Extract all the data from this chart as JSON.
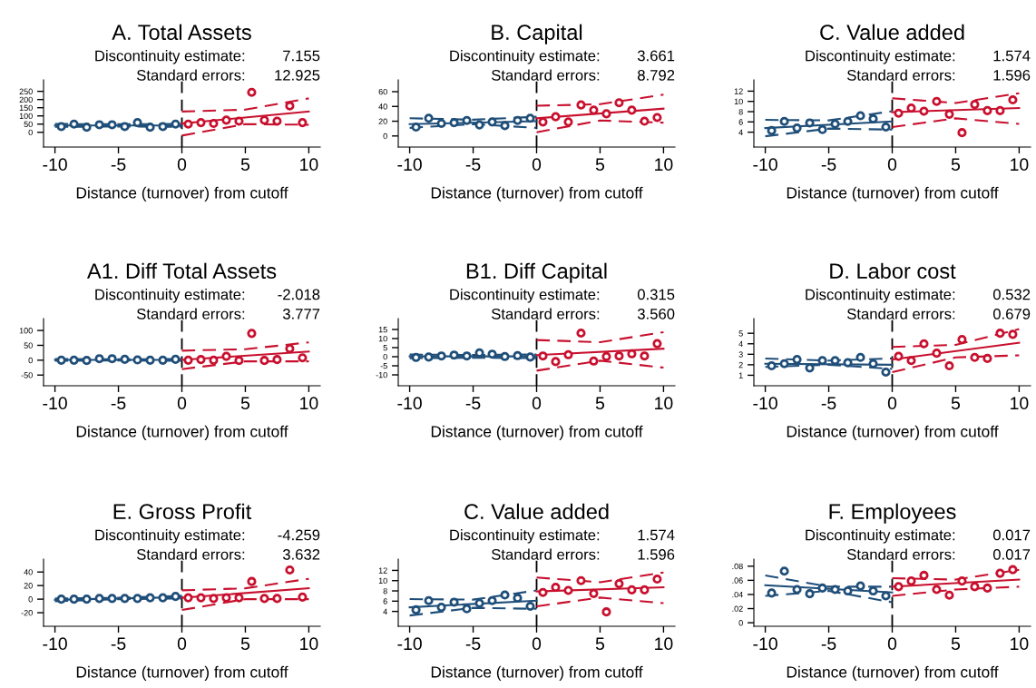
{
  "chart_data": [
    {
      "type": "scatter",
      "title": "A. Total Assets",
      "xlabel": "Distance (turnover) from cutoff",
      "annotations": [
        "Discontinuity estimate:",
        "7.155",
        "Standard errors:",
        "12.925"
      ],
      "xlim": [
        -10.9,
        10.9
      ],
      "xticks": [
        -10,
        -5,
        0,
        5,
        10
      ],
      "ylim": [
        -90,
        320
      ],
      "yticks": [
        0,
        50,
        100,
        150,
        200,
        250
      ],
      "ref_lines": [
        {
          "axis": "x",
          "value": 0,
          "color": "#000000",
          "line_style": "dashed"
        }
      ],
      "series": [
        {
          "marker": "circle",
          "color": "#1f4e79",
          "x": [
            -9.5,
            -8.5,
            -7.5,
            -6.5,
            -5.5,
            -4.5,
            -3.5,
            -2.5,
            -1.5,
            -0.5
          ],
          "values": [
            35,
            50,
            31,
            46,
            46,
            35,
            59,
            31,
            35,
            50
          ]
        },
        {
          "marker": "circle",
          "color": "#c8102e",
          "x": [
            0.5,
            1.5,
            2.5,
            3.5,
            4.5,
            5.5,
            6.5,
            7.5,
            8.5,
            9.5
          ],
          "values": [
            50,
            59,
            54,
            74,
            68,
            244,
            74,
            68,
            161,
            59
          ]
        },
        {
          "type": "line",
          "color": "#1f4e79",
          "line_style": "solid",
          "x": [
            -10,
            0
          ],
          "values": [
            42,
            42
          ]
        },
        {
          "type": "line",
          "color": "#1f4e79",
          "line_style": "dashed",
          "x": [
            -10,
            -5,
            0
          ],
          "values": [
            51,
            49,
            51
          ]
        },
        {
          "type": "line",
          "color": "#1f4e79",
          "line_style": "dashed",
          "x": [
            -10,
            -5,
            0
          ],
          "values": [
            33,
            35,
            33
          ]
        },
        {
          "type": "line",
          "color": "#c8102e",
          "line_style": "solid",
          "x": [
            0,
            10
          ],
          "values": [
            54,
            127
          ]
        },
        {
          "type": "line",
          "color": "#c8102e",
          "line_style": "dashed",
          "x": [
            0,
            5,
            10
          ],
          "values": [
            127,
            138,
            207
          ]
        },
        {
          "type": "line",
          "color": "#c8102e",
          "line_style": "dashed",
          "x": [
            0,
            5,
            10
          ],
          "values": [
            -20,
            50,
            46
          ]
        }
      ]
    },
    {
      "type": "scatter",
      "title": "B. Capital",
      "xlabel": "Distance (turnover) from cutoff",
      "annotations": [
        "Discontinuity estimate:",
        "3.661",
        "Standard errors:",
        "8.792"
      ],
      "xlim": [
        -10.9,
        10.9
      ],
      "xticks": [
        -10,
        -5,
        0,
        5,
        10
      ],
      "ylim": [
        -15,
        76
      ],
      "yticks": [
        0,
        20,
        40,
        60
      ],
      "ref_lines": [
        {
          "axis": "x",
          "value": 0,
          "color": "#000000",
          "line_style": "dashed"
        }
      ],
      "series": [
        {
          "marker": "circle",
          "color": "#1f4e79",
          "x": [
            -9.5,
            -8.5,
            -7.5,
            -6.5,
            -5.5,
            -4.5,
            -3.5,
            -2.5,
            -1.5,
            -0.5
          ],
          "values": [
            12,
            24,
            17,
            18,
            21,
            15,
            19,
            14,
            21,
            24
          ]
        },
        {
          "marker": "circle",
          "color": "#c8102e",
          "x": [
            0.5,
            1.5,
            2.5,
            3.5,
            4.5,
            5.5,
            6.5,
            7.5,
            8.5,
            9.5
          ],
          "values": [
            19,
            26,
            19,
            42,
            35,
            30,
            45,
            35,
            20,
            25
          ]
        },
        {
          "type": "line",
          "color": "#1f4e79",
          "line_style": "solid",
          "x": [
            -10,
            0
          ],
          "values": [
            16,
            20
          ]
        },
        {
          "type": "line",
          "color": "#1f4e79",
          "line_style": "dashed",
          "x": [
            -10,
            -5,
            0
          ],
          "values": [
            24,
            22,
            26
          ]
        },
        {
          "type": "line",
          "color": "#1f4e79",
          "line_style": "dashed",
          "x": [
            -10,
            -5,
            0
          ],
          "values": [
            11,
            16,
            11
          ]
        },
        {
          "type": "line",
          "color": "#c8102e",
          "line_style": "solid",
          "x": [
            0,
            10
          ],
          "values": [
            24,
            37
          ]
        },
        {
          "type": "line",
          "color": "#c8102e",
          "line_style": "dashed",
          "x": [
            0,
            5,
            10
          ],
          "values": [
            41,
            43,
            56
          ]
        },
        {
          "type": "line",
          "color": "#c8102e",
          "line_style": "dashed",
          "x": [
            0,
            5,
            10
          ],
          "values": [
            5,
            21,
            18
          ]
        }
      ]
    },
    {
      "type": "scatter",
      "title": "C. Value added",
      "xlabel": "Distance (turnover) from cutoff",
      "annotations": [
        "Discontinuity estimate:",
        "1.574",
        "Standard errors:",
        "1.596"
      ],
      "xlim": [
        -10.9,
        10.9
      ],
      "xticks": [
        -10,
        -5,
        0,
        5,
        10
      ],
      "ylim": [
        1.1,
        14.2
      ],
      "yticks": [
        4,
        6,
        8,
        10,
        12
      ],
      "ref_lines": [
        {
          "axis": "x",
          "value": 0,
          "color": "#000000",
          "line_style": "dashed"
        }
      ],
      "series": [
        {
          "marker": "circle",
          "color": "#1f4e79",
          "x": [
            -9.5,
            -8.5,
            -7.5,
            -6.5,
            -5.5,
            -4.5,
            -3.5,
            -2.5,
            -1.5,
            -0.5
          ],
          "values": [
            4.3,
            6.1,
            4.8,
            5.8,
            4.5,
            5.6,
            6.1,
            7.2,
            6.6,
            5.0
          ]
        },
        {
          "marker": "circle",
          "color": "#c8102e",
          "x": [
            0.5,
            1.5,
            2.5,
            3.5,
            4.5,
            5.5,
            6.5,
            7.5,
            8.5,
            9.5
          ],
          "values": [
            7.7,
            8.7,
            8.1,
            10,
            7.5,
            3.9,
            9.4,
            8.2,
            8.2,
            10.3
          ]
        },
        {
          "type": "line",
          "color": "#1f4e79",
          "line_style": "solid",
          "x": [
            -10,
            0
          ],
          "values": [
            4.8,
            6.1
          ]
        },
        {
          "type": "line",
          "color": "#1f4e79",
          "line_style": "dashed",
          "x": [
            -10,
            -5,
            0
          ],
          "values": [
            6.4,
            6.3,
            8.1
          ]
        },
        {
          "type": "line",
          "color": "#1f4e79",
          "line_style": "dashed",
          "x": [
            -10,
            -5,
            0
          ],
          "values": [
            3.2,
            4.7,
            4.5
          ]
        },
        {
          "type": "line",
          "color": "#c8102e",
          "line_style": "solid",
          "x": [
            0,
            10
          ],
          "values": [
            7.9,
            8.7
          ]
        },
        {
          "type": "line",
          "color": "#c8102e",
          "line_style": "dashed",
          "x": [
            0,
            5,
            10
          ],
          "values": [
            10.6,
            9.7,
            11.6
          ]
        },
        {
          "type": "line",
          "color": "#c8102e",
          "line_style": "dashed",
          "x": [
            0,
            5,
            10
          ],
          "values": [
            5.0,
            6.7,
            5.6
          ]
        }
      ]
    },
    {
      "type": "scatter",
      "title": "A1. Diff Total Assets",
      "xlabel": "Distance (turnover) from cutoff",
      "annotations": [
        "Discontinuity estimate:",
        "-2.018",
        "Standard errors:",
        "3.777"
      ],
      "xlim": [
        -10.9,
        10.9
      ],
      "xticks": [
        -10,
        -5,
        0,
        5,
        10
      ],
      "ylim": [
        -86,
        140
      ],
      "yticks": [
        -50,
        0,
        50,
        100
      ],
      "ref_lines": [
        {
          "axis": "x",
          "value": 0,
          "color": "#000000",
          "line_style": "dashed"
        }
      ],
      "series": [
        {
          "marker": "circle",
          "color": "#1f4e79",
          "x": [
            -9.5,
            -8.5,
            -7.5,
            -6.5,
            -5.5,
            -4.5,
            -3.5,
            -2.5,
            -1.5,
            -0.5
          ],
          "values": [
            0,
            0,
            -1,
            5,
            5,
            3,
            1,
            0,
            0,
            3
          ]
        },
        {
          "marker": "circle",
          "color": "#c8102e",
          "x": [
            0.5,
            1.5,
            2.5,
            3.5,
            4.5,
            5.5,
            6.5,
            7.5,
            8.5,
            9.5
          ],
          "values": [
            0,
            2,
            0,
            13,
            -1,
            90,
            -1,
            2,
            39,
            8
          ]
        },
        {
          "type": "line",
          "color": "#1f4e79",
          "line_style": "solid",
          "x": [
            -10,
            0
          ],
          "values": [
            1,
            1
          ]
        },
        {
          "type": "line",
          "color": "#1f4e79",
          "line_style": "dashed",
          "x": [
            -10,
            -5,
            0
          ],
          "values": [
            4,
            3,
            4
          ]
        },
        {
          "type": "line",
          "color": "#1f4e79",
          "line_style": "dashed",
          "x": [
            -10,
            -5,
            0
          ],
          "values": [
            -2,
            -1,
            -2
          ]
        },
        {
          "type": "line",
          "color": "#c8102e",
          "line_style": "solid",
          "x": [
            0,
            10
          ],
          "values": [
            1,
            29
          ]
        },
        {
          "type": "line",
          "color": "#c8102e",
          "line_style": "dashed",
          "x": [
            0,
            5,
            10
          ],
          "values": [
            32,
            37,
            60
          ]
        },
        {
          "type": "line",
          "color": "#c8102e",
          "line_style": "dashed",
          "x": [
            0,
            5,
            10
          ],
          "values": [
            -30,
            -4,
            -4
          ]
        }
      ]
    },
    {
      "type": "scatter",
      "title": "B1. Diff Capital",
      "xlabel": "Distance (turnover) from cutoff",
      "annotations": [
        "Discontinuity estimate:",
        "0.315",
        "Standard errors:",
        "3.560"
      ],
      "xlim": [
        -10.9,
        10.9
      ],
      "xticks": [
        -10,
        -5,
        0,
        5,
        10
      ],
      "ylim": [
        -16,
        21
      ],
      "yticks": [
        -10,
        -5,
        0,
        5,
        10,
        15
      ],
      "ref_lines": [
        {
          "axis": "x",
          "value": 0,
          "color": "#000000",
          "line_style": "dashed"
        }
      ],
      "series": [
        {
          "marker": "circle",
          "color": "#1f4e79",
          "x": [
            -9.5,
            -8.5,
            -7.5,
            -6.5,
            -5.5,
            -4.5,
            -3.5,
            -2.5,
            -1.5,
            -0.5
          ],
          "values": [
            -0.4,
            -0.2,
            0.4,
            0.9,
            0.4,
            2.1,
            1.4,
            0.1,
            0.6,
            -0.2
          ]
        },
        {
          "marker": "circle",
          "color": "#c8102e",
          "x": [
            0.5,
            1.5,
            2.5,
            3.5,
            4.5,
            5.5,
            6.5,
            7.5,
            8.5,
            9.5
          ],
          "values": [
            0.4,
            -2.7,
            1.1,
            13,
            -2.4,
            0.1,
            0.4,
            1.6,
            0.4,
            7.2
          ]
        },
        {
          "type": "line",
          "color": "#1f4e79",
          "line_style": "solid",
          "x": [
            -10,
            0
          ],
          "values": [
            0.2,
            0.2
          ]
        },
        {
          "type": "line",
          "color": "#1f4e79",
          "line_style": "dashed",
          "x": [
            -10,
            -5,
            0
          ],
          "values": [
            1.2,
            1,
            1.2
          ]
        },
        {
          "type": "line",
          "color": "#1f4e79",
          "line_style": "dashed",
          "x": [
            -10,
            -5,
            0
          ],
          "values": [
            -0.8,
            -0.6,
            -0.8
          ]
        },
        {
          "type": "line",
          "color": "#c8102e",
          "line_style": "solid",
          "x": [
            0,
            10
          ],
          "values": [
            0.9,
            4.4
          ]
        },
        {
          "type": "line",
          "color": "#c8102e",
          "line_style": "dashed",
          "x": [
            0,
            5,
            10
          ],
          "values": [
            9.2,
            8,
            13.5
          ]
        },
        {
          "type": "line",
          "color": "#c8102e",
          "line_style": "dashed",
          "x": [
            0,
            5,
            10
          ],
          "values": [
            -7.7,
            -2.2,
            -6
          ]
        }
      ]
    },
    {
      "type": "scatter",
      "title": "D. Labor cost",
      "xlabel": "Distance (turnover) from cutoff",
      "annotations": [
        "Discontinuity estimate:",
        "0.532",
        "Standard errors:",
        "0.679"
      ],
      "xlim": [
        -10.9,
        10.9
      ],
      "xticks": [
        -10,
        -5,
        0,
        5,
        10
      ],
      "ylim": [
        0,
        6.4
      ],
      "yticks": [
        1,
        2,
        3,
        4,
        5
      ],
      "ref_lines": [
        {
          "axis": "x",
          "value": 0,
          "color": "#000000",
          "line_style": "dashed"
        }
      ],
      "series": [
        {
          "marker": "circle",
          "color": "#1f4e79",
          "x": [
            -9.5,
            -8.5,
            -7.5,
            -6.5,
            -5.5,
            -4.5,
            -3.5,
            -2.5,
            -1.5,
            -0.5
          ],
          "values": [
            1.9,
            2.1,
            2.5,
            1.7,
            2.4,
            2.4,
            2.2,
            2.7,
            2.1,
            1.3
          ]
        },
        {
          "marker": "circle",
          "color": "#c8102e",
          "x": [
            0.5,
            1.5,
            2.5,
            3.5,
            4.5,
            5.5,
            6.5,
            7.5,
            8.5,
            9.5
          ],
          "values": [
            2.8,
            2.4,
            4.0,
            3.1,
            1.9,
            4.4,
            2.7,
            2.6,
            5.0,
            4.9
          ]
        },
        {
          "type": "line",
          "color": "#1f4e79",
          "line_style": "solid",
          "x": [
            -10,
            0
          ],
          "values": [
            2.1,
            2.0
          ]
        },
        {
          "type": "line",
          "color": "#1f4e79",
          "line_style": "dashed",
          "x": [
            -10,
            -5,
            0
          ],
          "values": [
            2.6,
            2.4,
            2.6
          ]
        },
        {
          "type": "line",
          "color": "#1f4e79",
          "line_style": "dashed",
          "x": [
            -10,
            -5,
            0
          ],
          "values": [
            1.8,
            2.0,
            1.6
          ]
        },
        {
          "type": "line",
          "color": "#c8102e",
          "line_style": "solid",
          "x": [
            0,
            10
          ],
          "values": [
            2.5,
            4.1
          ]
        },
        {
          "type": "line",
          "color": "#c8102e",
          "line_style": "dashed",
          "x": [
            0,
            5,
            10
          ],
          "values": [
            3.7,
            3.9,
            5.4
          ]
        },
        {
          "type": "line",
          "color": "#c8102e",
          "line_style": "dashed",
          "x": [
            0,
            5,
            10
          ],
          "values": [
            1.3,
            2.7,
            2.9
          ]
        }
      ]
    },
    {
      "type": "scatter",
      "title": "E. Gross Profit",
      "xlabel": "Distance (turnover) from cutoff",
      "annotations": [
        "Discontinuity estimate:",
        "-4.259",
        "Standard errors:",
        "3.632"
      ],
      "xlim": [
        -10.9,
        10.9
      ],
      "xticks": [
        -10,
        -5,
        0,
        5,
        10
      ],
      "ylim": [
        -40,
        59
      ],
      "yticks": [
        -20,
        0,
        20,
        40
      ],
      "ref_lines": [
        {
          "axis": "x",
          "value": 0,
          "color": "#000000",
          "line_style": "dashed"
        }
      ],
      "series": [
        {
          "marker": "circle",
          "color": "#1f4e79",
          "x": [
            -9.5,
            -8.5,
            -7.5,
            -6.5,
            -5.5,
            -4.5,
            -3.5,
            -2.5,
            -1.5,
            -0.5
          ],
          "values": [
            0,
            0,
            0,
            1,
            1,
            1,
            1,
            2,
            2,
            4
          ]
        },
        {
          "marker": "circle",
          "color": "#c8102e",
          "x": [
            0.5,
            1.5,
            2.5,
            3.5,
            4.5,
            5.5,
            6.5,
            7.5,
            8.5,
            9.5
          ],
          "values": [
            2,
            2,
            1,
            2,
            2,
            26,
            1,
            1,
            43,
            3
          ]
        },
        {
          "type": "line",
          "color": "#1f4e79",
          "line_style": "solid",
          "x": [
            -10,
            0
          ],
          "values": [
            -1,
            3
          ]
        },
        {
          "type": "line",
          "color": "#1f4e79",
          "line_style": "dashed",
          "x": [
            -10,
            -5,
            0
          ],
          "values": [
            1,
            2,
            5
          ]
        },
        {
          "type": "line",
          "color": "#1f4e79",
          "line_style": "dashed",
          "x": [
            -10,
            -5,
            0
          ],
          "values": [
            -3,
            0,
            1
          ]
        },
        {
          "type": "line",
          "color": "#c8102e",
          "line_style": "solid",
          "x": [
            0,
            10
          ],
          "values": [
            2,
            16
          ]
        },
        {
          "type": "line",
          "color": "#c8102e",
          "line_style": "dashed",
          "x": [
            0,
            5,
            10
          ],
          "values": [
            13,
            16,
            30
          ]
        },
        {
          "type": "line",
          "color": "#c8102e",
          "line_style": "dashed",
          "x": [
            0,
            5,
            10
          ],
          "values": [
            -16,
            0,
            0
          ]
        }
      ]
    },
    {
      "type": "scatter",
      "title": "C. Value added",
      "xlabel": "Distance (turnover) from cutoff",
      "annotations": [
        "Discontinuity estimate:",
        "1.574",
        "Standard errors:",
        "1.596"
      ],
      "xlim": [
        -10.9,
        10.9
      ],
      "xticks": [
        -10,
        -5,
        0,
        5,
        10
      ],
      "ylim": [
        1.1,
        14.2
      ],
      "yticks": [
        4,
        6,
        8,
        10,
        12
      ],
      "ref_lines": [
        {
          "axis": "x",
          "value": 0,
          "color": "#000000",
          "line_style": "dashed"
        }
      ],
      "series": [
        {
          "marker": "circle",
          "color": "#1f4e79",
          "x": [
            -9.5,
            -8.5,
            -7.5,
            -6.5,
            -5.5,
            -4.5,
            -3.5,
            -2.5,
            -1.5,
            -0.5
          ],
          "values": [
            4.3,
            6.1,
            4.8,
            5.8,
            4.5,
            5.6,
            6.1,
            7.2,
            6.6,
            5.0
          ]
        },
        {
          "marker": "circle",
          "color": "#c8102e",
          "x": [
            0.5,
            1.5,
            2.5,
            3.5,
            4.5,
            5.5,
            6.5,
            7.5,
            8.5,
            9.5
          ],
          "values": [
            7.7,
            8.7,
            8.1,
            10,
            7.5,
            3.9,
            9.4,
            8.2,
            8.2,
            10.3
          ]
        },
        {
          "type": "line",
          "color": "#1f4e79",
          "line_style": "solid",
          "x": [
            -10,
            0
          ],
          "values": [
            4.8,
            6.1
          ]
        },
        {
          "type": "line",
          "color": "#1f4e79",
          "line_style": "dashed",
          "x": [
            -10,
            -5,
            0
          ],
          "values": [
            6.4,
            6.3,
            8.1
          ]
        },
        {
          "type": "line",
          "color": "#1f4e79",
          "line_style": "dashed",
          "x": [
            -10,
            -5,
            0
          ],
          "values": [
            3.2,
            4.7,
            4.5
          ]
        },
        {
          "type": "line",
          "color": "#c8102e",
          "line_style": "solid",
          "x": [
            0,
            10
          ],
          "values": [
            7.9,
            8.7
          ]
        },
        {
          "type": "line",
          "color": "#c8102e",
          "line_style": "dashed",
          "x": [
            0,
            5,
            10
          ],
          "values": [
            10.6,
            9.7,
            11.6
          ]
        },
        {
          "type": "line",
          "color": "#c8102e",
          "line_style": "dashed",
          "x": [
            0,
            5,
            10
          ],
          "values": [
            5.0,
            6.7,
            5.6
          ]
        }
      ]
    },
    {
      "type": "scatter",
      "title": "F. Employees",
      "xlabel": "Distance (turnover) from cutoff",
      "annotations": [
        "Discontinuity estimate:",
        "0.017",
        "Standard errors:",
        "0.017"
      ],
      "xlim": [
        -10.9,
        10.9
      ],
      "xticks": [
        -10,
        -5,
        0,
        5,
        10
      ],
      "ylim": [
        -0.005,
        0.09
      ],
      "yticks": [
        0,
        {
          "value": 0.02,
          "label": ".02"
        },
        {
          "value": 0.04,
          "label": ".04"
        },
        {
          "value": 0.06,
          "label": ".06"
        },
        {
          "value": 0.08,
          "label": ".08"
        }
      ],
      "ref_lines": [
        {
          "axis": "x",
          "value": 0,
          "color": "#000000",
          "line_style": "dashed"
        }
      ],
      "series": [
        {
          "marker": "circle",
          "color": "#1f4e79",
          "x": [
            -9.5,
            -8.5,
            -7.5,
            -6.5,
            -5.5,
            -4.5,
            -3.5,
            -2.5,
            -1.5,
            -0.5
          ],
          "values": [
            0.042,
            0.073,
            0.047,
            0.041,
            0.049,
            0.047,
            0.045,
            0.052,
            0.045,
            0.038
          ]
        },
        {
          "marker": "circle",
          "color": "#c8102e",
          "x": [
            0.5,
            1.5,
            2.5,
            3.5,
            4.5,
            5.5,
            6.5,
            7.5,
            8.5,
            9.5
          ],
          "values": [
            0.051,
            0.059,
            0.067,
            0.047,
            0.039,
            0.059,
            0.051,
            0.049,
            0.07,
            0.075
          ]
        },
        {
          "type": "line",
          "color": "#1f4e79",
          "line_style": "solid",
          "x": [
            -10,
            0
          ],
          "values": [
            0.053,
            0.043
          ]
        },
        {
          "type": "line",
          "color": "#1f4e79",
          "line_style": "dashed",
          "x": [
            -10,
            -5,
            0
          ],
          "values": [
            0.067,
            0.051,
            0.051
          ]
        },
        {
          "type": "line",
          "color": "#1f4e79",
          "line_style": "dashed",
          "x": [
            -10,
            -5,
            0
          ],
          "values": [
            0.038,
            0.045,
            0.029
          ]
        },
        {
          "type": "line",
          "color": "#c8102e",
          "line_style": "solid",
          "x": [
            0,
            10
          ],
          "values": [
            0.051,
            0.061
          ]
        },
        {
          "type": "line",
          "color": "#c8102e",
          "line_style": "dashed",
          "x": [
            0,
            5,
            10
          ],
          "values": [
            0.063,
            0.061,
            0.075
          ]
        },
        {
          "type": "line",
          "color": "#c8102e",
          "line_style": "dashed",
          "x": [
            0,
            5,
            10
          ],
          "values": [
            0.038,
            0.047,
            0.051
          ]
        }
      ]
    }
  ]
}
